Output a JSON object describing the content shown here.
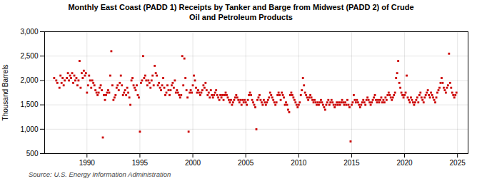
{
  "chart_data": {
    "type": "scatter",
    "title": "Monthly East Coast (PADD 1) Receipts by Tanker and Barge from Midwest (PADD 2) of Crude\nOil and Petroleum Products",
    "ylabel": "Thousand Barrels",
    "source": "Source: U.S. Energy Information Administration",
    "color": "#cc0000",
    "marker": "square",
    "grid": true,
    "xlim": [
      1986.0,
      2026.0
    ],
    "ylim": [
      500,
      3000
    ],
    "xticks": [
      1990,
      1995,
      2000,
      2005,
      2010,
      2015,
      2020,
      2025
    ],
    "yticks": [
      500,
      {
        "value": 1000,
        "label": "1,000"
      },
      {
        "value": 1500,
        "label": "1,500"
      },
      {
        "value": 2000,
        "label": "2,000"
      },
      {
        "value": 2500,
        "label": "2,500"
      },
      {
        "value": 3000,
        "label": "3,000"
      }
    ],
    "x": [
      1986.9,
      1987.1,
      1987.2,
      1987.4,
      1987.5,
      1987.6,
      1987.7,
      1987.8,
      1987.9,
      1988.1,
      1988.2,
      1988.3,
      1988.4,
      1988.5,
      1988.6,
      1988.7,
      1988.8,
      1988.9,
      1989.0,
      1989.1,
      1989.2,
      1989.3,
      1989.4,
      1989.5,
      1989.6,
      1989.7,
      1989.8,
      1989.9,
      1990.0,
      1990.1,
      1990.2,
      1990.3,
      1990.4,
      1990.5,
      1990.6,
      1990.7,
      1990.8,
      1990.9,
      1991.0,
      1991.1,
      1991.2,
      1991.3,
      1991.4,
      1991.5,
      1991.6,
      1991.7,
      1991.8,
      1991.9,
      1992.0,
      1992.1,
      1992.2,
      1992.3,
      1992.4,
      1992.5,
      1992.6,
      1992.7,
      1992.8,
      1992.9,
      1993.0,
      1993.1,
      1993.2,
      1993.3,
      1993.4,
      1993.5,
      1993.6,
      1993.7,
      1993.8,
      1993.9,
      1994.0,
      1994.1,
      1994.2,
      1994.3,
      1994.4,
      1994.5,
      1994.6,
      1994.7,
      1994.8,
      1994.9,
      1995.0,
      1995.1,
      1995.2,
      1995.3,
      1995.4,
      1995.5,
      1995.6,
      1995.7,
      1995.8,
      1995.9,
      1996.0,
      1996.1,
      1996.2,
      1996.3,
      1996.4,
      1996.5,
      1996.6,
      1996.7,
      1996.8,
      1996.9,
      1997.0,
      1997.1,
      1997.2,
      1997.3,
      1997.4,
      1997.5,
      1997.6,
      1997.7,
      1997.8,
      1997.9,
      1998.0,
      1998.1,
      1998.2,
      1998.3,
      1998.4,
      1998.5,
      1998.6,
      1998.7,
      1998.8,
      1998.9,
      1999.0,
      1999.1,
      1999.2,
      1999.3,
      1999.4,
      1999.5,
      1999.6,
      1999.7,
      1999.8,
      1999.9,
      2000.0,
      2000.1,
      2000.2,
      2000.3,
      2000.4,
      2000.5,
      2000.6,
      2000.7,
      2000.8,
      2000.9,
      2001.0,
      2001.1,
      2001.2,
      2001.3,
      2001.4,
      2001.5,
      2001.6,
      2001.7,
      2001.8,
      2001.9,
      2002.0,
      2002.1,
      2002.2,
      2002.3,
      2002.4,
      2002.5,
      2002.6,
      2002.7,
      2002.8,
      2002.9,
      2003.0,
      2003.1,
      2003.2,
      2003.3,
      2003.4,
      2003.5,
      2003.6,
      2003.7,
      2003.8,
      2003.9,
      2004.0,
      2004.1,
      2004.2,
      2004.3,
      2004.4,
      2004.5,
      2004.6,
      2004.7,
      2004.8,
      2004.9,
      2005.0,
      2005.1,
      2005.2,
      2005.3,
      2005.4,
      2005.5,
      2005.6,
      2005.7,
      2005.8,
      2005.9,
      2006.0,
      2006.1,
      2006.2,
      2006.3,
      2006.4,
      2006.5,
      2006.6,
      2006.7,
      2006.8,
      2006.9,
      2007.0,
      2007.1,
      2007.2,
      2007.3,
      2007.4,
      2007.5,
      2007.6,
      2007.7,
      2007.8,
      2007.9,
      2008.0,
      2008.1,
      2008.2,
      2008.3,
      2008.4,
      2008.5,
      2008.6,
      2008.7,
      2008.8,
      2008.9,
      2009.0,
      2009.1,
      2009.2,
      2009.3,
      2009.4,
      2009.5,
      2009.6,
      2009.7,
      2009.8,
      2009.9,
      2010.0,
      2010.1,
      2010.2,
      2010.3,
      2010.4,
      2010.5,
      2010.6,
      2010.7,
      2010.8,
      2010.9,
      2011.0,
      2011.1,
      2011.2,
      2011.3,
      2011.4,
      2011.5,
      2011.6,
      2011.7,
      2011.8,
      2011.9,
      2012.0,
      2012.1,
      2012.2,
      2012.3,
      2012.4,
      2012.5,
      2012.6,
      2012.7,
      2012.8,
      2012.9,
      2013.0,
      2013.1,
      2013.2,
      2013.3,
      2013.4,
      2013.5,
      2013.6,
      2013.7,
      2013.8,
      2013.9,
      2014.0,
      2014.1,
      2014.2,
      2014.3,
      2014.4,
      2014.5,
      2014.6,
      2014.7,
      2014.8,
      2014.9,
      2015.0,
      2015.1,
      2015.2,
      2015.3,
      2015.4,
      2015.5,
      2015.6,
      2015.7,
      2015.8,
      2015.9,
      2016.0,
      2016.1,
      2016.2,
      2016.3,
      2016.4,
      2016.5,
      2016.6,
      2016.7,
      2016.8,
      2016.9,
      2017.0,
      2017.1,
      2017.2,
      2017.3,
      2017.4,
      2017.5,
      2017.6,
      2017.7,
      2017.8,
      2017.9,
      2018.0,
      2018.1,
      2018.2,
      2018.3,
      2018.4,
      2018.5,
      2018.6,
      2018.7,
      2018.8,
      2018.9,
      2019.0,
      2019.1,
      2019.2,
      2019.3,
      2019.4,
      2019.5,
      2019.6,
      2019.7,
      2019.8,
      2019.9,
      2020.0,
      2020.1,
      2020.2,
      2020.3,
      2020.4,
      2020.5,
      2020.6,
      2020.7,
      2020.8,
      2020.9,
      2021.0,
      2021.1,
      2021.2,
      2021.3,
      2021.4,
      2021.5,
      2021.6,
      2021.7,
      2021.8,
      2021.9,
      2022.0,
      2022.1,
      2022.2,
      2022.3,
      2022.4,
      2022.5,
      2022.6,
      2022.7,
      2022.8,
      2022.9,
      2023.0,
      2023.1,
      2023.2,
      2023.3,
      2023.4,
      2023.5,
      2023.6,
      2023.7,
      2023.8,
      2023.9,
      2024.0,
      2024.1,
      2024.2,
      2024.3,
      2024.4,
      2024.5,
      2024.6,
      2024.7,
      2024.8,
      2024.9
    ],
    "values": [
      2050,
      2000,
      1950,
      1850,
      2100,
      1950,
      2050,
      1900,
      2000,
      2050,
      2150,
      2000,
      2100,
      2050,
      2150,
      1950,
      2100,
      2000,
      2050,
      1900,
      2000,
      2400,
      1850,
      2150,
      2050,
      2200,
      2100,
      2150,
      1750,
      1900,
      2100,
      2000,
      1850,
      2000,
      1950,
      1900,
      1800,
      1750,
      1700,
      1750,
      1850,
      1900,
      1800,
      830,
      1700,
      1600,
      1700,
      1750,
      1800,
      1750,
      2100,
      2600,
      1900,
      1600,
      1650,
      1700,
      1850,
      1900,
      1800,
      1950,
      2100,
      1900,
      1700,
      1750,
      1800,
      1700,
      1850,
      1750,
      1650,
      1500,
      2000,
      2050,
      1900,
      1850,
      1800,
      1900,
      1700,
      1650,
      950,
      1950,
      2000,
      2500,
      2050,
      2100,
      2000,
      1900,
      2000,
      1950,
      1850,
      2000,
      2100,
      1900,
      2300,
      2150,
      2100,
      1900,
      1950,
      1850,
      1800,
      1900,
      2050,
      1850,
      1700,
      1750,
      1900,
      1800,
      1700,
      1800,
      1900,
      1950,
      1850,
      2000,
      1750,
      1800,
      1750,
      1700,
      1650,
      1700,
      2500,
      1900,
      2450,
      2050,
      1800,
      1650,
      950,
      1750,
      1800,
      1750,
      1900,
      2100,
      2000,
      1850,
      1750,
      1800,
      1750,
      1700,
      1750,
      1800,
      1900,
      1850,
      1950,
      1800,
      1700,
      1750,
      1650,
      1800,
      1700,
      1650,
      1700,
      1750,
      1800,
      1700,
      1650,
      1600,
      1700,
      1650,
      1700,
      1600,
      1700,
      1750,
      1700,
      1650,
      1600,
      1550,
      1600,
      1500,
      1550,
      1600,
      1650,
      1700,
      1650,
      1600,
      1550,
      1600,
      1500,
      1600,
      1550,
      1600,
      1550,
      1500,
      1600,
      1700,
      1750,
      1700,
      1600,
      1550,
      1500,
      1450,
      1000,
      1600,
      1650,
      1700,
      1600,
      1550,
      1500,
      1600,
      1550,
      1500,
      1550,
      1600,
      1650,
      1750,
      1700,
      1650,
      1600,
      1550,
      1500,
      1550,
      1700,
      1750,
      1700,
      1600,
      1750,
      1700,
      1650,
      1500,
      1550,
      1500,
      1400,
      1350,
      1700,
      1750,
      1700,
      1650,
      1600,
      1550,
      1500,
      1450,
      1500,
      1550,
      1700,
      1800,
      2050,
      1900,
      1750,
      1700,
      1650,
      1600,
      1650,
      1700,
      1650,
      1600,
      1550,
      1600,
      1550,
      1500,
      1550,
      1500,
      1550,
      1600,
      1550,
      1500,
      1450,
      1400,
      1500,
      1550,
      1600,
      1500,
      1550,
      1600,
      1550,
      1500,
      1450,
      1500,
      1550,
      1500,
      1550,
      1500,
      1550,
      1600,
      1550,
      1500,
      1550,
      1500,
      1600,
      1500,
      1450,
      750,
      1500,
      1550,
      1700,
      1600,
      1550,
      1600,
      1550,
      1500,
      1450,
      1500,
      1550,
      1600,
      1550,
      1500,
      1600,
      1650,
      1600,
      1550,
      1500,
      1550,
      1600,
      1650,
      1700,
      1600,
      1550,
      1600,
      1550,
      1600,
      1650,
      1550,
      1600,
      1550,
      1650,
      1600,
      1700,
      1750,
      1700,
      1650,
      1600,
      1650,
      1700,
      1750,
      2050,
      2150,
      2400,
      1950,
      1850,
      1750,
      1700,
      1650,
      1700,
      1750,
      2100,
      1650,
      1600,
      1550,
      1650,
      1600,
      1550,
      1500,
      1550,
      1600,
      1650,
      1550,
      1700,
      1750,
      1650,
      1600,
      1550,
      1650,
      1700,
      1750,
      1800,
      1700,
      1650,
      1750,
      1700,
      1650,
      1600,
      1550,
      1650,
      1750,
      1800,
      1850,
      1950,
      2050,
      1950,
      1850,
      1800,
      1750,
      1850,
      1900,
      2550,
      1950,
      1850,
      1750,
      1700,
      1650,
      1700,
      1750
    ]
  }
}
